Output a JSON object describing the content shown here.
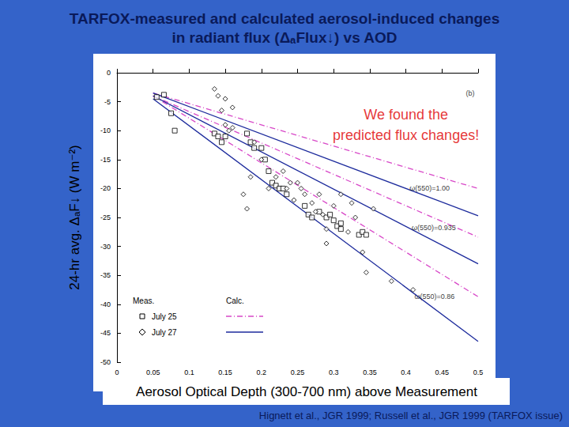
{
  "chart_data": {
    "type": "scatter",
    "title": [
      "TARFOX-measured and calculated aerosol-induced changes",
      "in radiant flux (ΔₐFlux↓) vs AOD"
    ],
    "x_label": "Aerosol Optical Depth (300-700 nm) above Measurement",
    "y_label": "24-hr avg. ΔₐF↓ (W m⁻²)",
    "source": "Hignett et al., JGR 1999; Russell et al., JGR 1999 (TARFOX issue)",
    "legend_headings": [
      "Meas.",
      "Calc."
    ],
    "xlim": [
      0,
      0.5
    ],
    "ylim": [
      -50,
      0
    ],
    "xticks": [
      0,
      0.05,
      0.1,
      0.15,
      0.2,
      0.25,
      0.3,
      0.35,
      0.4,
      0.45,
      0.5
    ],
    "yticks": [
      0,
      -5,
      -10,
      -15,
      -20,
      -25,
      -30,
      -35,
      -40,
      -45,
      -50
    ],
    "grid": false,
    "series": [
      {
        "name": "July 25",
        "type": "scatter",
        "marker": "square",
        "color": "#000000",
        "x": [
          0.055,
          0.065,
          0.075,
          0.08,
          0.135,
          0.14,
          0.145,
          0.15,
          0.18,
          0.185,
          0.19,
          0.2,
          0.205,
          0.21,
          0.215,
          0.22,
          0.225,
          0.23,
          0.235,
          0.26,
          0.265,
          0.27,
          0.28,
          0.29,
          0.295,
          0.3,
          0.305,
          0.31,
          0.31,
          0.335,
          0.34,
          0.345
        ],
        "values": [
          -4.2,
          -3.8,
          -7,
          -10,
          -10.5,
          -11,
          -12,
          -11,
          -10.5,
          -12,
          -13,
          -13,
          -15,
          -17,
          -19,
          -19.5,
          -20,
          -20,
          -21,
          -23,
          -24.5,
          -25,
          -24,
          -25,
          -24.5,
          -25.5,
          -26.5,
          -26,
          -27,
          -28,
          -27.5,
          -28
        ]
      },
      {
        "name": "July 27",
        "type": "scatter",
        "marker": "diamond",
        "color": "#000000",
        "x": [
          0.135,
          0.14,
          0.145,
          0.15,
          0.15,
          0.155,
          0.16,
          0.16,
          0.175,
          0.18,
          0.185,
          0.19,
          0.2,
          0.21,
          0.22,
          0.23,
          0.235,
          0.24,
          0.245,
          0.25,
          0.255,
          0.26,
          0.27,
          0.275,
          0.28,
          0.285,
          0.29,
          0.29,
          0.3,
          0.31,
          0.32,
          0.325,
          0.33,
          0.34,
          0.345,
          0.355,
          0.38,
          0.41
        ],
        "values": [
          -2.8,
          -4,
          -6.5,
          -4.5,
          -9,
          -10,
          -9.5,
          -6,
          -21,
          -23.5,
          -18,
          -12,
          -15,
          -20,
          -18,
          -17,
          -20,
          -19,
          -22,
          -19,
          -20,
          -21,
          -22.5,
          -24,
          -21,
          -24.5,
          -27,
          -29.5,
          -23,
          -21,
          -27.5,
          -22.5,
          -25,
          -31,
          -34.5,
          -23.5,
          -36,
          -37.5
        ]
      },
      {
        "name": "July 25",
        "type": "line",
        "line_style": "dashdot",
        "color": "#d848c8",
        "x": [
          0.05,
          0.5
        ],
        "values": [
          -3.5,
          -20
        ]
      },
      {
        "name": "July 25",
        "type": "line",
        "line_style": "dashdot",
        "color": "#d848c8",
        "x": [
          0.05,
          0.5
        ],
        "values": [
          -4,
          -28.4
        ]
      },
      {
        "name": "July 25",
        "type": "line",
        "line_style": "dashdot",
        "color": "#d848c8",
        "x": [
          0.05,
          0.5
        ],
        "values": [
          -4,
          -38.7
        ]
      },
      {
        "name": "July 27",
        "type": "line",
        "line_style": "solid",
        "color": "#1c2a9c",
        "x": [
          0.05,
          0.5
        ],
        "values": [
          -3.5,
          -24.7
        ]
      },
      {
        "name": "July 27",
        "type": "line",
        "line_style": "solid",
        "color": "#1c2a9c",
        "x": [
          0.05,
          0.5
        ],
        "values": [
          -4,
          -33
        ]
      },
      {
        "name": "July 27",
        "type": "line",
        "line_style": "solid",
        "color": "#1c2a9c",
        "x": [
          0.05,
          0.5
        ],
        "values": [
          -4.5,
          -46.4
        ]
      }
    ],
    "annotations": [
      {
        "text": "ω(550)=1.00",
        "x": 0.405,
        "y": -20,
        "color": "#000000"
      },
      {
        "text": "ω(550)=0.935",
        "x": 0.408,
        "y": -26.8,
        "color": "#000000"
      },
      {
        "text": "ω(550)=0.86",
        "x": 0.412,
        "y": -38.7,
        "color": "#000000"
      },
      {
        "text": "(b)",
        "x": 0.483,
        "y": -3.6,
        "color": "#000000"
      }
    ],
    "callout": {
      "text": [
        "We found the",
        "predicted flux changes!"
      ],
      "x": 0.4,
      "y": -9,
      "color": "#e00000"
    }
  }
}
